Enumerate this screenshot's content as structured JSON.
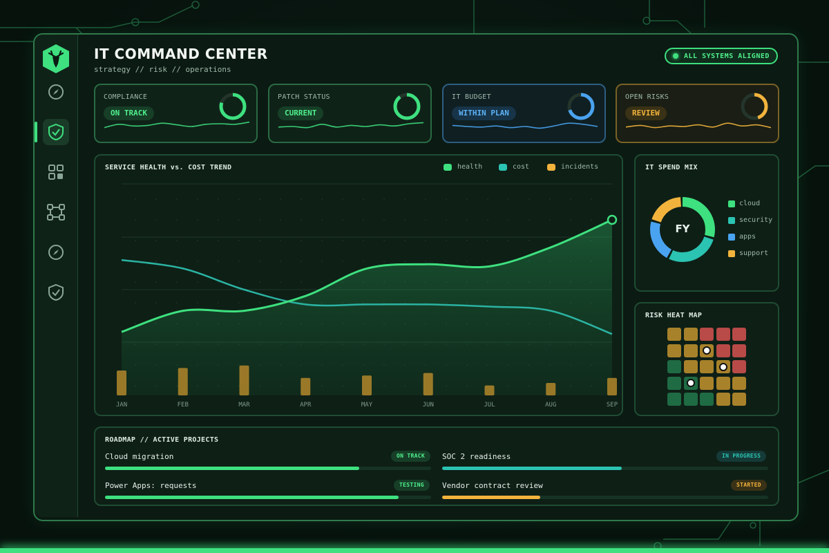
{
  "app": {
    "title": "IT COMMAND CENTER",
    "subtitle": "strategy // risk // operations",
    "status": "ALL SYSTEMS ALIGNED"
  },
  "sidebar": {
    "items": [
      {
        "icon": "compass-icon"
      },
      {
        "icon": "shield-check-icon",
        "active": true
      },
      {
        "icon": "grid-icon"
      },
      {
        "icon": "network-icon"
      },
      {
        "icon": "compass-icon"
      },
      {
        "icon": "shield-icon"
      }
    ]
  },
  "kpis": [
    {
      "label": "COMPLIANCE",
      "badge": "ON TRACK",
      "color": "#3ee07f",
      "level": 0.8
    },
    {
      "label": "PATCH STATUS",
      "badge": "CURRENT",
      "color": "#3ee07f",
      "level": 0.9
    },
    {
      "label": "IT BUDGET",
      "badge": "WITHIN PLAN",
      "color": "#4aa3f0",
      "level": 0.7
    },
    {
      "label": "OPEN RISKS",
      "badge": "REVIEW",
      "color": "#f2b33d",
      "level": 0.45
    }
  ],
  "trend": {
    "title": "SERVICE HEALTH vs. COST TREND",
    "legend": [
      {
        "label": "health",
        "color": "#3ee07f"
      },
      {
        "label": "cost",
        "color": "#2bc3b2"
      },
      {
        "label": "incidents",
        "color": "#f2b33d"
      }
    ]
  },
  "chart_data": {
    "type": "line",
    "categories": [
      "JAN",
      "FEB",
      "MAR",
      "APR",
      "MAY",
      "JUN",
      "JUL",
      "AUG",
      "SEP"
    ],
    "title": "SERVICE HEALTH vs. COST TREND",
    "ylim": [
      0,
      100
    ],
    "series": [
      {
        "name": "health",
        "values": [
          30,
          40,
          40,
          47,
          60,
          62,
          61,
          70,
          83
        ]
      },
      {
        "name": "cost",
        "values": [
          64,
          60,
          50,
          43,
          43,
          43,
          42,
          40,
          29
        ]
      },
      {
        "name": "incidents",
        "values": [
          10,
          11,
          12,
          7,
          8,
          9,
          4,
          5,
          7
        ]
      }
    ]
  },
  "spend_mix": {
    "title": "IT SPEND MIX",
    "center": "FY",
    "items": [
      {
        "label": "cloud",
        "color": "#3ee07f",
        "share": 0.3
      },
      {
        "label": "security",
        "color": "#2bc3b2",
        "share": 0.28
      },
      {
        "label": "apps",
        "color": "#4aa3f0",
        "share": 0.22
      },
      {
        "label": "support",
        "color": "#f2b33d",
        "share": 0.2
      }
    ]
  },
  "heatmap": {
    "title": "RISK HEAT MAP",
    "cells": [
      [
        "y",
        "y",
        "r",
        "r",
        "r"
      ],
      [
        "y",
        "y",
        "y",
        "r",
        "r"
      ],
      [
        "g",
        "y",
        "y",
        "y",
        "r"
      ],
      [
        "g",
        "g",
        "y",
        "y",
        "y"
      ],
      [
        "g",
        "g",
        "g",
        "y",
        "y"
      ]
    ],
    "markers": [
      [
        1,
        2
      ],
      [
        2,
        3
      ],
      [
        3,
        1
      ]
    ]
  },
  "roadmap": {
    "title": "ROADMAP // ACTIVE PROJECTS",
    "projects": [
      {
        "name": "Cloud migration",
        "status": "ON TRACK",
        "progress": 0.78,
        "color": "#3ee07f"
      },
      {
        "name": "SOC 2 readiness",
        "status": "IN PROGRESS",
        "progress": 0.55,
        "color": "#2bc3b2"
      },
      {
        "name": "Power Apps: requests",
        "status": "TESTING",
        "progress": 0.9,
        "color": "#3ee07f"
      },
      {
        "name": "Vendor contract review",
        "status": "STARTED",
        "progress": 0.3,
        "color": "#f2b33d"
      }
    ]
  }
}
